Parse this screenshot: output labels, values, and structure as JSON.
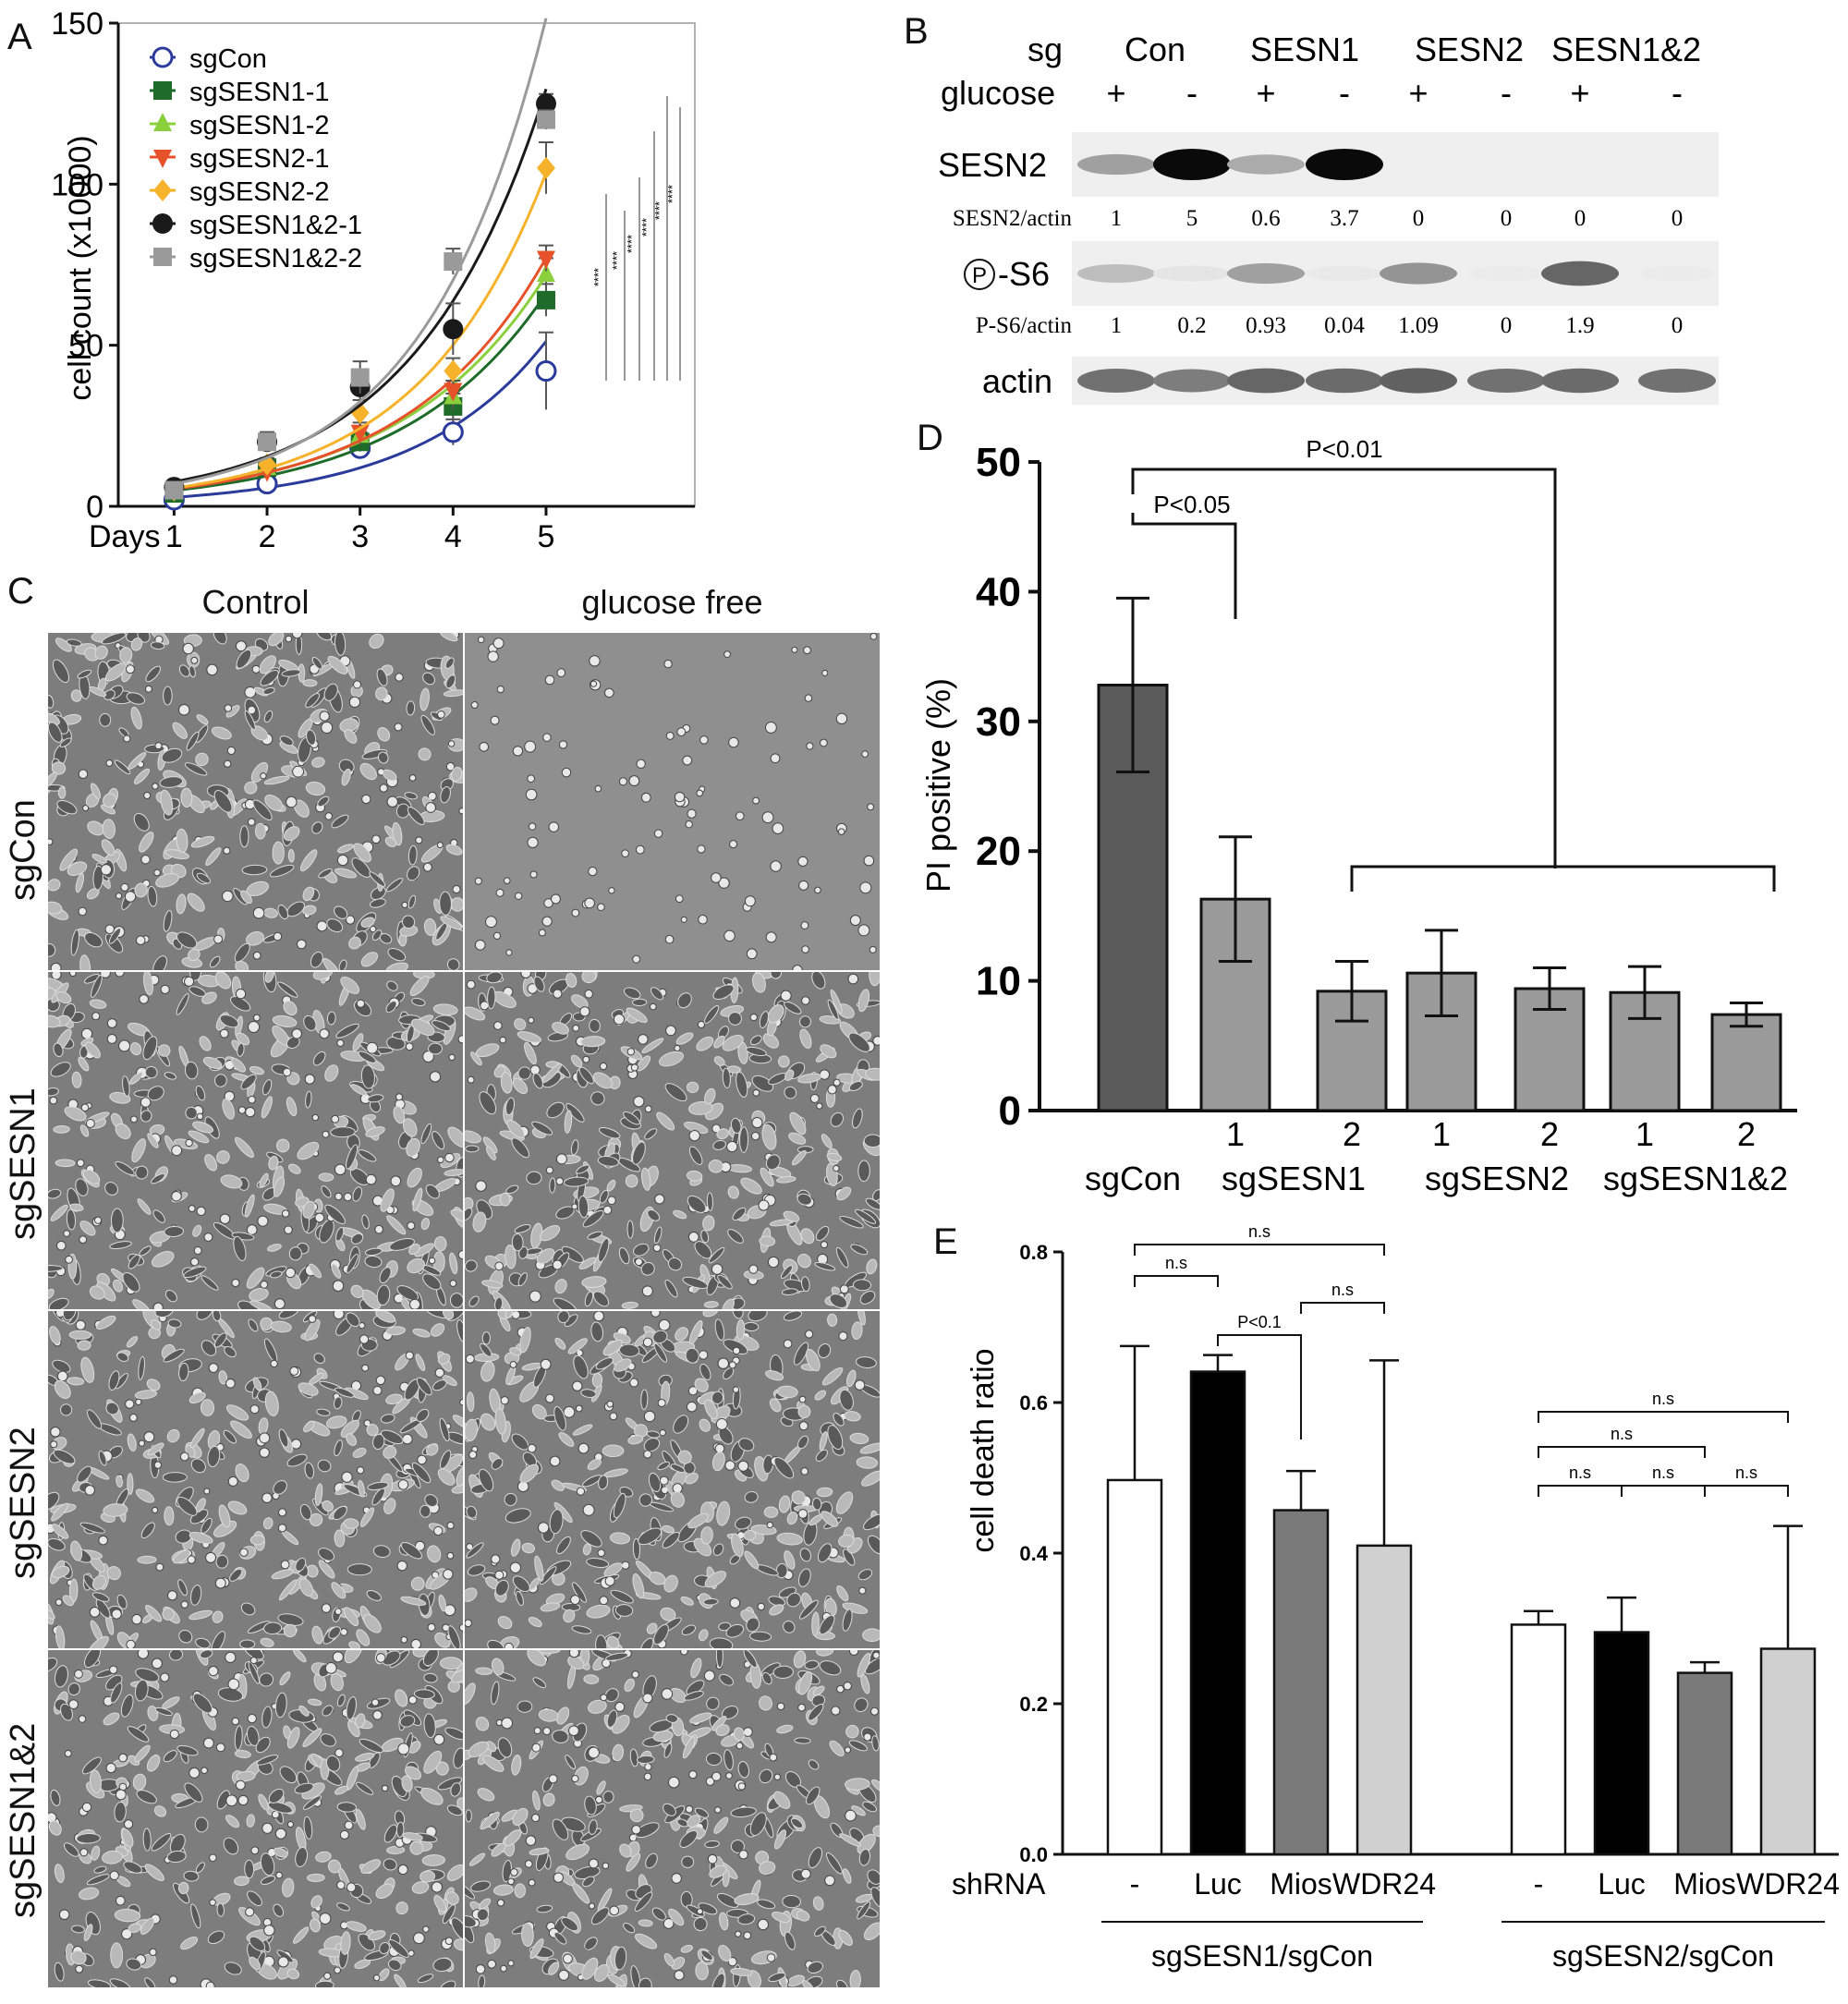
{
  "panel_letters": {
    "a": "A",
    "b": "B",
    "c": "C",
    "d": "D",
    "e": "E"
  },
  "colors": {
    "sgCon": "#2b3b9c",
    "sgSESN1-1": "#1e6b2a",
    "sgSESN1-2": "#8ccf3c",
    "sgSESN2-1": "#e8522a",
    "sgSESN2-2": "#f6b22a",
    "sgSESN1&2-1": "#1a1a1a",
    "sgSESN1&2-2": "#9a9a9a",
    "bar_dark": "#5a5a5a",
    "bar_mid": "#9a9a9a",
    "bar_e_black": "#000000",
    "bar_e_dark": "#7a7a7a",
    "bar_e_light": "#d0d0d0"
  },
  "chart_data": [
    {
      "id": "A",
      "type": "line",
      "ylabel": "cell count (x10000)",
      "xlabel": "Days",
      "x": [
        1,
        2,
        3,
        4,
        5
      ],
      "xlim": [
        0.4,
        6.6
      ],
      "ylim": [
        0,
        150
      ],
      "yticks": [
        0,
        50,
        100,
        150
      ],
      "legend_position": "top-left",
      "significance_marks": [
        "****",
        "****",
        "****",
        "****",
        "****",
        "****"
      ],
      "series": [
        {
          "name": "sgCon",
          "marker": "open-circle",
          "values": [
            2,
            7,
            18,
            23,
            42
          ],
          "err": [
            1,
            2,
            2,
            4,
            12
          ]
        },
        {
          "name": "sgSESN1-1",
          "marker": "square",
          "values": [
            4,
            12,
            20,
            31,
            64
          ],
          "err": [
            1,
            2,
            3,
            4,
            5
          ]
        },
        {
          "name": "sgSESN1-2",
          "marker": "triangle-up",
          "values": [
            5,
            12,
            22,
            34,
            72
          ],
          "err": [
            1,
            2,
            3,
            4,
            5
          ]
        },
        {
          "name": "sgSESN2-1",
          "marker": "triangle-down",
          "values": [
            5,
            11,
            23,
            36,
            77
          ],
          "err": [
            1,
            2,
            3,
            3,
            4
          ]
        },
        {
          "name": "sgSESN2-2",
          "marker": "diamond",
          "values": [
            5,
            13,
            29,
            42,
            105
          ],
          "err": [
            1,
            2,
            4,
            4,
            8
          ]
        },
        {
          "name": "sgSESN1&2-1",
          "marker": "filled-circle",
          "values": [
            6,
            20,
            37,
            55,
            125
          ],
          "err": [
            1,
            3,
            5,
            8,
            3
          ]
        },
        {
          "name": "sgSESN1&2-2",
          "marker": "filled-square",
          "values": [
            5,
            20,
            40,
            76,
            120
          ],
          "err": [
            1,
            3,
            5,
            4,
            3
          ]
        }
      ]
    },
    {
      "id": "D",
      "type": "bar",
      "ylabel": "PI positive (%)",
      "ylim": [
        0,
        50
      ],
      "yticks": [
        0,
        10,
        20,
        30,
        40,
        50
      ],
      "bars": [
        {
          "sub": "",
          "value": 32.8,
          "err": 6.7,
          "color": "bar_dark"
        },
        {
          "sub": "1",
          "value": 16.3,
          "err": 4.8,
          "color": "bar_mid"
        },
        {
          "sub": "2",
          "value": 9.2,
          "err": 2.3,
          "color": "bar_mid"
        },
        {
          "sub": "1",
          "value": 10.6,
          "err": 3.3,
          "color": "bar_mid"
        },
        {
          "sub": "2",
          "value": 9.4,
          "err": 1.6,
          "color": "bar_mid"
        },
        {
          "sub": "1",
          "value": 9.1,
          "err": 2.0,
          "color": "bar_mid"
        },
        {
          "sub": "2",
          "value": 7.4,
          "err": 0.9,
          "color": "bar_mid"
        }
      ],
      "groups": [
        "sgCon",
        "sgSESN1",
        "sgSESN2",
        "sgSESN1&2"
      ],
      "annotations": [
        "P<0.05",
        "P<0.01"
      ]
    },
    {
      "id": "E",
      "type": "bar",
      "ylabel": "cell death ratio",
      "ylim": [
        0,
        0.8
      ],
      "yticks": [
        "0.0",
        "0.2",
        "0.4",
        "0.6",
        "0.8"
      ],
      "row_label": "shRNA",
      "categories": [
        "-",
        "Luc",
        "Mios",
        "WDR24"
      ],
      "groups": [
        {
          "name": "sgSESN1/sgCon",
          "values": [
            0.497,
            0.641,
            0.457,
            0.41
          ],
          "err": [
            0.178,
            0.022,
            0.052,
            0.246
          ]
        },
        {
          "name": "sgSESN2/sgCon",
          "values": [
            0.305,
            0.295,
            0.241,
            0.273
          ],
          "err": [
            0.018,
            0.046,
            0.014,
            0.163
          ]
        }
      ],
      "annotations": {
        "g1": [
          "n.s",
          "n.s",
          "P<0.1",
          "n.s"
        ],
        "g2": [
          "n.s",
          "n.s",
          "n.s",
          "n.s",
          "n.s"
        ]
      }
    }
  ],
  "blot": {
    "sg_label": "sg",
    "glucose_label": "glucose",
    "groups": [
      "Con",
      "SESN1",
      "SESN2",
      "SESN1&2"
    ],
    "glucose": [
      "+",
      "-",
      "+",
      "-",
      "+",
      "-",
      "+",
      "-"
    ],
    "rows": [
      {
        "label": "SESN2",
        "intensity": [
          0.35,
          1.0,
          0.3,
          1.0,
          0,
          0,
          0,
          0
        ]
      },
      {
        "label": "-S6",
        "label_prefix": "P",
        "intensity": [
          0.22,
          0.05,
          0.35,
          0.03,
          0.4,
          0.02,
          0.6,
          0.02
        ]
      },
      {
        "label": "actin",
        "intensity": [
          0.55,
          0.5,
          0.6,
          0.58,
          0.62,
          0.55,
          0.58,
          0.55
        ]
      }
    ],
    "quant": [
      {
        "label": "SESN2/actin",
        "values": [
          "1",
          "5",
          "0.6",
          "3.7",
          "0",
          "0",
          "0",
          "0"
        ]
      },
      {
        "label": "P-S6/actin",
        "values": [
          "1",
          "0.2",
          "0.93",
          "0.04",
          "1.09",
          "0",
          "1.9",
          "0"
        ]
      }
    ]
  },
  "micro": {
    "columns": [
      "Control",
      "glucose free"
    ],
    "rows": [
      "sgCon",
      "sgSESN1",
      "sgSESN2",
      "sgSESN1&2"
    ]
  }
}
